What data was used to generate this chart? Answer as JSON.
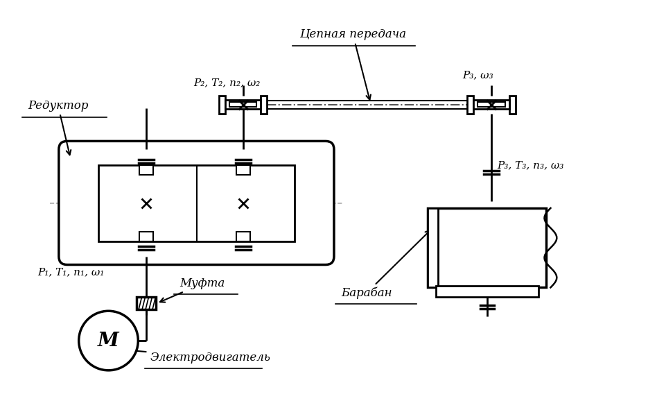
{
  "bg_color": "#ffffff",
  "line_color": "#000000",
  "dash_color": "#888888",
  "lw": 2.0,
  "lw_thin": 1.0,
  "label_reduktor": "Редуктор",
  "label_mufta": "Муфта",
  "label_elektro": "Электродвигатель",
  "label_tsepnaya": "Цепная передача",
  "label_baraban": "Барабан",
  "label_p1": "P₁, T₁, n₁, ω₁",
  "label_p2": "P₂, T₂, n₂, ω₂",
  "label_p3w3_top": "P₃, ω₃",
  "label_p3t3": "P₃, T₃, n₃, ω₃",
  "motor_letter": "М",
  "font_size_label": 11,
  "font_size_annot": 12
}
